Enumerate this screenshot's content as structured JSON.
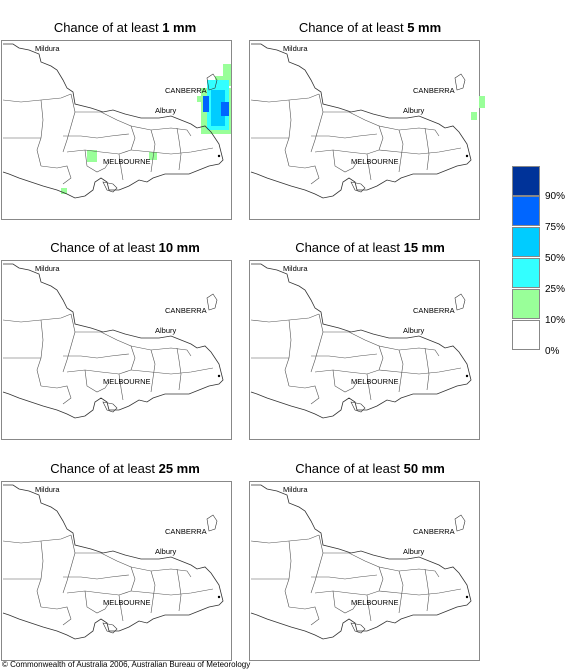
{
  "panels": [
    {
      "prefix": "Chance of at least ",
      "amount": "1 mm"
    },
    {
      "prefix": "Chance of at least ",
      "amount": "5 mm"
    },
    {
      "prefix": "Chance of at least ",
      "amount": "10 mm"
    },
    {
      "prefix": "Chance of at least ",
      "amount": "15 mm"
    },
    {
      "prefix": "Chance of at least ",
      "amount": "25 mm"
    },
    {
      "prefix": "Chance of at least ",
      "amount": "50 mm"
    }
  ],
  "cities": {
    "mildura": "Mildura",
    "canberra": "CANBERRA",
    "albury": "Albury",
    "melbourne": "MELBOURNE"
  },
  "legend": {
    "labels": [
      "90%",
      "75%",
      "50%",
      "25%",
      "10%",
      "0%"
    ],
    "colors": [
      "#003399",
      "#0066ff",
      "#00ccff",
      "#33ffff",
      "#99ff99",
      "#ffffff"
    ]
  },
  "copyright": "© Commonwealth of Australia 2006, Australian Bureau of Meteorology"
}
